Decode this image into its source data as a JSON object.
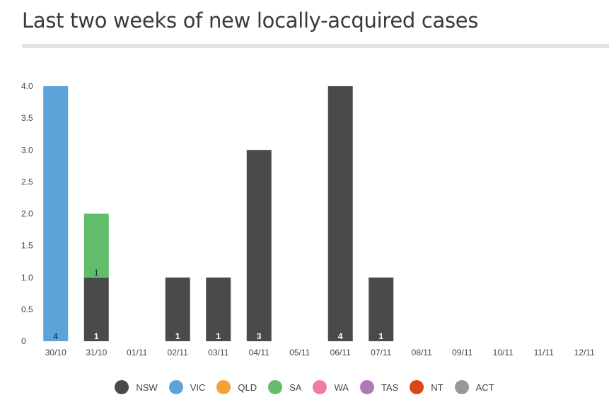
{
  "title": "Last two weeks of new locally-acquired cases",
  "chart_data": {
    "type": "bar",
    "stacked": true,
    "categories": [
      "30/10",
      "31/10",
      "01/11",
      "02/11",
      "03/11",
      "04/11",
      "05/11",
      "06/11",
      "07/11",
      "08/11",
      "09/11",
      "10/11",
      "11/11",
      "12/11"
    ],
    "series": [
      {
        "name": "NSW",
        "color": "#4a4a4a",
        "values": [
          0,
          1,
          0,
          1,
          1,
          3,
          0,
          4,
          1,
          0,
          0,
          0,
          0,
          0
        ]
      },
      {
        "name": "VIC",
        "color": "#5ba3d9",
        "values": [
          4,
          0,
          0,
          0,
          0,
          0,
          0,
          0,
          0,
          0,
          0,
          0,
          0,
          0
        ]
      },
      {
        "name": "QLD",
        "color": "#f5a03c",
        "values": [
          0,
          0,
          0,
          0,
          0,
          0,
          0,
          0,
          0,
          0,
          0,
          0,
          0,
          0
        ]
      },
      {
        "name": "SA",
        "color": "#62bd6a",
        "values": [
          0,
          1,
          0,
          0,
          0,
          0,
          0,
          0,
          0,
          0,
          0,
          0,
          0,
          0
        ]
      },
      {
        "name": "WA",
        "color": "#f07aaa",
        "values": [
          0,
          0,
          0,
          0,
          0,
          0,
          0,
          0,
          0,
          0,
          0,
          0,
          0,
          0
        ]
      },
      {
        "name": "TAS",
        "color": "#b077b8",
        "values": [
          0,
          0,
          0,
          0,
          0,
          0,
          0,
          0,
          0,
          0,
          0,
          0,
          0,
          0
        ]
      },
      {
        "name": "NT",
        "color": "#d9471a",
        "values": [
          0,
          0,
          0,
          0,
          0,
          0,
          0,
          0,
          0,
          0,
          0,
          0,
          0,
          0
        ]
      },
      {
        "name": "ACT",
        "color": "#999999",
        "values": [
          0,
          0,
          0,
          0,
          0,
          0,
          0,
          0,
          0,
          0,
          0,
          0,
          0,
          0
        ]
      }
    ],
    "yticks": [
      "0",
      "0.5",
      "1.0",
      "1.5",
      "2.0",
      "2.5",
      "3.0",
      "3.5",
      "4.0"
    ],
    "ylim": [
      0,
      4
    ],
    "grid": false,
    "legend_position": "bottom",
    "data_labels": [
      {
        "category": "30/10",
        "series": "VIC",
        "label": "4"
      },
      {
        "category": "31/10",
        "series": "NSW",
        "label": "1"
      },
      {
        "category": "31/10",
        "series": "SA",
        "label": "1"
      },
      {
        "category": "02/11",
        "series": "NSW",
        "label": "1"
      },
      {
        "category": "03/11",
        "series": "NSW",
        "label": "1"
      },
      {
        "category": "04/11",
        "series": "NSW",
        "label": "3"
      },
      {
        "category": "06/11",
        "series": "NSW",
        "label": "4"
      },
      {
        "category": "07/11",
        "series": "NSW",
        "label": "1"
      }
    ]
  }
}
